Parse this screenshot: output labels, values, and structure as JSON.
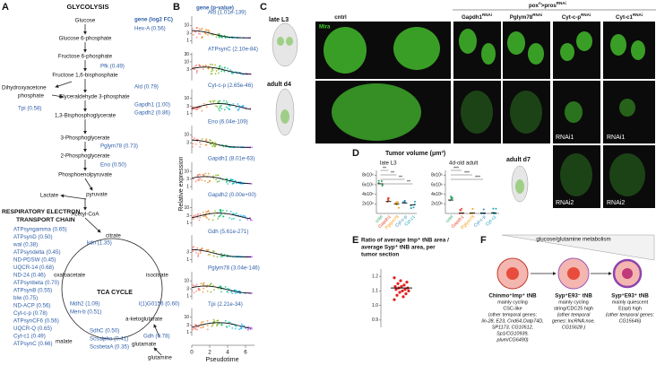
{
  "panel_a": {
    "label": "A",
    "title": "GLYCOLYSIS",
    "gene_header": "gene (log2 FC)",
    "metabolites": [
      "Glucose",
      "Glucose 6-phosphate",
      "Fructose 6-phosphate",
      "Fructose 1,6-bisphosphate",
      "Glyceraldehyde 3-phosphate",
      "1,3-Bisphosphoglycerate",
      "3-Phosphoglycerate",
      "2-Phosphoglycerate",
      "Phosphoenolpyruvate",
      "Lactate",
      "pyruvate",
      "Acetyl-CoA"
    ],
    "dhap": [
      "Dihydroxyacetone",
      "phosphate"
    ],
    "enzymes": [
      "Hex-A (0.56)",
      "Pfk (0.49)",
      "Ald (0.79)",
      "Tpi (0.58)",
      "Gapdh1 (1.00)",
      "Gapdh2 (0.86)",
      "Pglym78 (0.73)",
      "Eno (0.50)"
    ],
    "etc_title": [
      "RESPIRATORY ELECTRON",
      "TRANSPORT CHAIN"
    ],
    "etc_genes": [
      "ATPsyngamma (0.65)",
      "ATPsynD (0.50)",
      "wal (0.38)",
      "ATPsyndelta (0.45)",
      "ND-PDSW (0.45)",
      "UQCR-14 (0.68)",
      "ND-24 (0.46)",
      "ATPsynbeta (0.70)",
      "ATPsynB (0.55)",
      "blw (0.75)",
      "ND-ACP (0.56)",
      "Cyt-c-p (0.78)",
      "ATPsynCF6 (0.56)",
      "UQCR-Q (0.65)",
      "Cyt-c1 (0.49)",
      "ATPsynC (0.66)"
    ],
    "tca_title": "TCA CYCLE",
    "tca_metabolites": [
      "citrate",
      "isocitrate",
      "a-ketoglutarate",
      "glutamate",
      "glutamine",
      "malate",
      "oxaloacetate"
    ],
    "tca_enzymes": [
      "kdn (1.35)",
      "l(1)G0156 (0.60)",
      "Gdh (0.78)",
      "SdhC (0.50)",
      "Scsalpha (0.41)",
      "ScsbetaA (0.35)",
      "Mdh2 (1.09)",
      "Men-b (0.51)"
    ]
  },
  "panel_b": {
    "label": "B",
    "header": "gene (p-value)",
    "ylabel": "Relative expression",
    "xlabel": "Pseudotime",
    "xlim": [
      0,
      7
    ],
    "xticks": [
      0,
      2,
      4,
      6
    ],
    "ylim": [
      0.6,
      40
    ],
    "panels": [
      {
        "gene": "Ald (1.01e-139)",
        "yticks": [
          1,
          3,
          10
        ]
      },
      {
        "gene": "ATPsynC (2.10e-84)",
        "yticks": [
          3,
          10,
          30
        ]
      },
      {
        "gene": "Cyt-c-p (2.65e-46)",
        "yticks": [
          1,
          3,
          10
        ]
      },
      {
        "gene": "Eno (6.04e-109)",
        "yticks": [
          3,
          10
        ]
      },
      {
        "gene": "Gapdh1 (8.01e-63)",
        "yticks": [
          1,
          3,
          10
        ]
      },
      {
        "gene": "Gapdh2 (0.00e+00)",
        "yticks": [
          1,
          3,
          10
        ]
      },
      {
        "gene": "Gdh (5.61e-271)",
        "yticks": [
          1,
          3
        ]
      },
      {
        "gene": "Pglym78 (3.04e-146)",
        "yticks": [
          1,
          3,
          10
        ]
      },
      {
        "gene": "Tpi (2.21e-34)",
        "yticks": [
          1,
          3,
          10
        ]
      }
    ]
  },
  "panel_c": {
    "label": "C",
    "genotype": [
      "pox",
      "n",
      ">pros",
      "RNAi"
    ],
    "columns": [
      {
        "name": "cntrl"
      },
      {
        "name": "Gapdh1",
        "sup": "RNAi"
      },
      {
        "name": "Pglym78",
        "sup": "RNAi"
      },
      {
        "name": "Cyt-c-p",
        "sup": "RNAi"
      },
      {
        "name": "Cyt-c1",
        "sup": "RNAi"
      }
    ],
    "rows": [
      "late L3",
      "adult d4",
      "adult d7"
    ],
    "stain": "Mira",
    "rnai_labels": [
      "RNAi1",
      "RNAi1",
      "RNAi2",
      "RNAi2"
    ]
  },
  "panel_d": {
    "label": "D",
    "title": "Tumor volume (μm³)",
    "categories": [
      "cntrl",
      "Gapdh1",
      "Pglym78",
      "Cyt-c-p",
      "Cyt-c1"
    ],
    "colors": [
      "#2ca25f",
      "#e34a33",
      "#f39c12",
      "#3182bd",
      "#17a2b8"
    ],
    "charts": [
      {
        "title": "late L3",
        "values": [
          6200000,
          2500000,
          2000000,
          2200000,
          1800000
        ],
        "ylim": [
          0,
          9000000
        ],
        "yticks": [
          {
            "value": 2000000,
            "label": "2x10⁶"
          },
          {
            "value": 4000000,
            "label": "4x10⁶"
          },
          {
            "value": 6000000,
            "label": "6x10⁶"
          },
          {
            "value": 8000000,
            "label": "8x10⁶"
          }
        ],
        "significance": [
          "**",
          "**",
          "**",
          "**"
        ]
      },
      {
        "title": "4d-old adult",
        "values": [
          2800000,
          100000,
          100000,
          100000,
          100000
        ],
        "ylim": [
          0,
          9000000
        ],
        "yticks": [
          {
            "value": 2000000,
            "label": "2x10⁶"
          },
          {
            "value": 4000000,
            "label": "4x10⁶"
          },
          {
            "value": 6000000,
            "label": "6x10⁶"
          },
          {
            "value": 8000000,
            "label": "8x10⁶"
          }
        ],
        "significance": [
          "***",
          "***",
          "***"
        ]
      }
    ]
  },
  "panel_e": {
    "label": "E",
    "title": [
      "Ratio of average Imp⁺ tNB area /",
      "average Syp⁺ tNB area, per",
      "tumor section"
    ],
    "values": [
      1.19,
      1.17,
      1.16,
      1.15,
      1.14,
      1.13,
      1.13,
      1.12,
      1.12,
      1.11,
      1.11,
      1.1,
      1.1,
      1.09,
      1.08,
      1.07,
      1.06,
      1.04
    ],
    "mean": 1.12,
    "ylim": [
      0.85,
      1.25
    ],
    "yticks": [
      0.9,
      {
        "value": 1,
        "label": "1.0"
      },
      1.1,
      1.2
    ]
  },
  "panel_f": {
    "label": "F",
    "gradient_label": "glucose/glutamine metabolism",
    "cells": [
      {
        "title": "Chinmo⁺Imp⁺ tNB",
        "lines": [
          "mainly cycling",
          "CSC-like",
          "(other temporal genes:",
          "lin-28, E23, Cnd64,Oatp74D,",
          "SP1173, CG10512,",
          "Sp1/CG10939,",
          "plum/CG6490)"
        ]
      },
      {
        "title": "Syp⁺E93⁻ tNB",
        "lines": [
          "mainly cycling",
          "string/CDC25 high",
          "(other temporal",
          "genes: lncRNA:noe,",
          "CG15628 )"
        ]
      },
      {
        "title": "Syp⁺E93⁺ tNB",
        "lines": [
          "mainly quiescent",
          "E(spl) high",
          "(other temporal genes:",
          "CG15646)"
        ]
      }
    ]
  }
}
